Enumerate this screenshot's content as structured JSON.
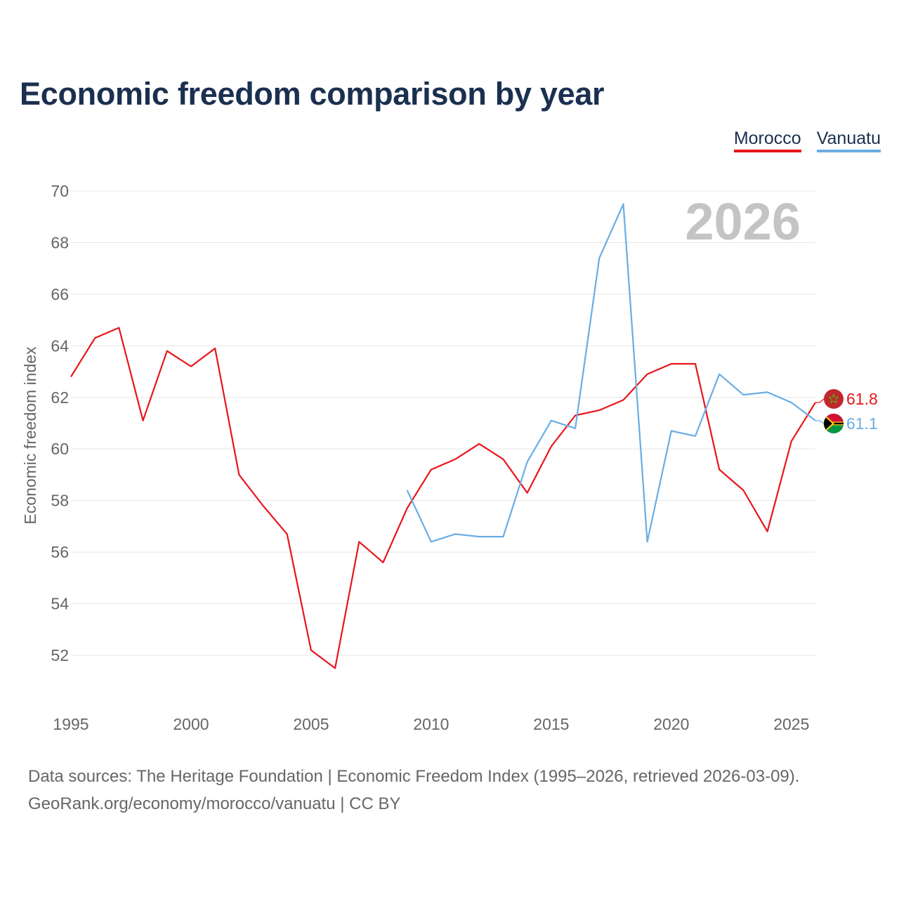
{
  "title": "Economic freedom comparison by year",
  "footer": {
    "line1": "Data sources: The Heritage Foundation | Economic Freedom Index (1995–2026, retrieved 2026-03-09).",
    "line2": "GeoRank.org/economy/morocco/vanuatu | CC BY"
  },
  "chart_data": {
    "type": "line",
    "title": "Economic freedom comparison by year",
    "xlabel": "",
    "ylabel": "Economic freedom index",
    "xlim": [
      1995,
      2026
    ],
    "ylim": [
      50,
      70
    ],
    "x_ticks": [
      1995,
      2000,
      2005,
      2010,
      2015,
      2020,
      2025
    ],
    "y_ticks": [
      52,
      54,
      56,
      58,
      60,
      62,
      64,
      66,
      68,
      70
    ],
    "grid": true,
    "legend": "top-right",
    "watermark": "2026",
    "series": [
      {
        "name": "Morocco",
        "color": "#e8151b",
        "end_label": "61.8",
        "x": [
          1995,
          1996,
          1997,
          1998,
          1999,
          2000,
          2001,
          2002,
          2003,
          2004,
          2005,
          2006,
          2007,
          2008,
          2009,
          2010,
          2011,
          2012,
          2013,
          2014,
          2015,
          2016,
          2017,
          2018,
          2019,
          2020,
          2021,
          2022,
          2023,
          2024,
          2025,
          2026
        ],
        "values": [
          62.8,
          64.3,
          64.7,
          61.1,
          63.8,
          63.2,
          63.9,
          59.0,
          57.8,
          56.7,
          52.2,
          51.5,
          56.4,
          55.6,
          57.7,
          59.2,
          59.6,
          60.2,
          59.6,
          58.3,
          60.1,
          61.3,
          61.5,
          61.9,
          62.9,
          63.3,
          63.3,
          59.2,
          58.4,
          56.8,
          60.3,
          61.8
        ]
      },
      {
        "name": "Vanuatu",
        "color": "#6aade4",
        "end_label": "61.1",
        "x": [
          2009,
          2010,
          2011,
          2012,
          2013,
          2014,
          2015,
          2016,
          2017,
          2018,
          2019,
          2020,
          2021,
          2022,
          2023,
          2024,
          2025,
          2026
        ],
        "values": [
          58.4,
          56.4,
          56.7,
          56.6,
          56.6,
          59.5,
          61.1,
          60.8,
          67.4,
          69.5,
          56.4,
          60.7,
          60.5,
          62.9,
          62.1,
          62.2,
          61.8,
          61.1
        ]
      }
    ]
  }
}
